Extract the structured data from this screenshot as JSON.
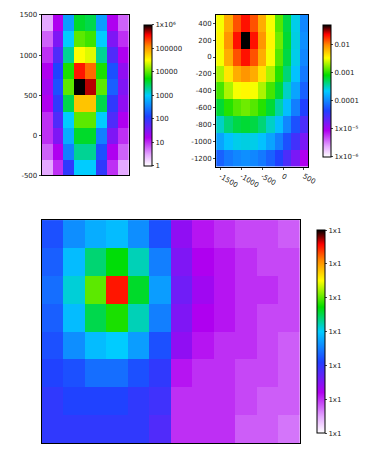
{
  "chart_data": [
    {
      "type": "heatmap",
      "log": true,
      "tick_labels": "y",
      "xlim": [
        -800,
        800
      ],
      "ylim": [
        -500,
        1500
      ],
      "yticks": [
        -500,
        0,
        500,
        1000,
        1500
      ],
      "x": [
        -700,
        -500,
        -300,
        -100,
        100,
        300,
        500,
        700
      ],
      "y": [
        -400,
        -200,
        0,
        200,
        400,
        600,
        800,
        1000,
        1200,
        1400
      ],
      "cells": [
        [
          3,
          10,
          100,
          1000,
          1000,
          100,
          10,
          3
        ],
        [
          6,
          16,
          320,
          2000,
          2000,
          160,
          16,
          6
        ],
        [
          10,
          32,
          630,
          4000,
          4000,
          320,
          32,
          10
        ],
        [
          10,
          63,
          1000,
          10000,
          10000,
          1000,
          63,
          16
        ],
        [
          16,
          100,
          3200,
          63000,
          63000,
          3200,
          100,
          25
        ],
        [
          20,
          160,
          10000,
          1000000,
          500000,
          10000,
          200,
          32
        ],
        [
          16,
          130,
          6300,
          320000,
          160000,
          6300,
          160,
          25
        ],
        [
          10,
          63,
          2000,
          32000,
          25000,
          2000,
          63,
          16
        ],
        [
          6,
          32,
          1000,
          10000,
          8000,
          1000,
          32,
          10
        ],
        [
          3,
          16,
          500,
          4000,
          3200,
          500,
          16,
          6
        ]
      ],
      "colorbar_range": [
        1,
        1000000
      ],
      "colorbar_ticks": [
        1,
        10,
        100,
        1000,
        10000,
        100000,
        {
          "value": 1000000,
          "label": "1x10⁶"
        }
      ]
    },
    {
      "type": "heatmap",
      "log": true,
      "xlim": [
        -1600,
        600
      ],
      "ylim": [
        -1300,
        500
      ],
      "xticks": [
        -1500,
        -1000,
        -500,
        0,
        500
      ],
      "yticks": [
        -1200,
        -1000,
        -800,
        -600,
        -400,
        -200,
        0,
        200,
        400
      ],
      "x": [
        -1500,
        -1300,
        -1100,
        -900,
        -700,
        -500,
        -300,
        -100,
        100,
        300,
        500
      ],
      "y": [
        -1200,
        -1000,
        -800,
        -600,
        -400,
        -200,
        0,
        200,
        400
      ],
      "cells": [
        [
          6.5e-05,
          8.5e-05,
          0.0001,
          0.00011,
          0.0001,
          8.5e-05,
          6.5e-05,
          4.4e-05,
          2.7e-05,
          1.6e-05,
          8.7e-06
        ],
        [
          0.00014,
          0.0002,
          0.00025,
          0.00026,
          0.00025,
          0.0002,
          0.00014,
          9.1e-05,
          5.4e-05,
          3e-05,
          1.6e-05
        ],
        [
          0.0003,
          0.00045,
          0.00058,
          0.00063,
          0.00058,
          0.00045,
          0.0003,
          0.00019,
          0.0001,
          5.4e-05,
          2.7e-05
        ],
        [
          0.00063,
          0.001,
          0.0013,
          0.0015,
          0.0013,
          0.001,
          0.00063,
          0.00035,
          0.00019,
          9.1e-05,
          4.4e-05
        ],
        [
          0.0012,
          0.0021,
          0.0032,
          0.0036,
          0.0032,
          0.0021,
          0.0012,
          0.00063,
          0.0003,
          0.00014,
          6.5e-05
        ],
        [
          0.0021,
          0.0042,
          0.0071,
          0.0087,
          0.0071,
          0.0042,
          0.0021,
          0.001,
          0.00045,
          0.0002,
          8.5e-05
        ],
        [
          0.0032,
          0.0071,
          0.014,
          0.021,
          0.014,
          0.0071,
          0.0032,
          0.0013,
          0.00058,
          0.00025,
          0.0001
        ],
        [
          0.0036,
          0.0087,
          0.021,
          0.05,
          0.021,
          0.0087,
          0.0036,
          0.0015,
          0.00063,
          0.00026,
          0.00011
        ],
        [
          0.0032,
          0.0071,
          0.014,
          0.021,
          0.014,
          0.0071,
          0.0032,
          0.0013,
          0.00058,
          0.00025,
          0.0001
        ]
      ],
      "colorbar_range": [
        1e-06,
        0.05
      ],
      "colorbar_ticks": [
        {
          "value": 1e-06,
          "label": "1x10⁻⁶"
        },
        {
          "value": 1e-05,
          "label": "1x10⁻⁵"
        },
        0.0001,
        0.001,
        0.01
      ]
    },
    {
      "type": "heatmap",
      "log": true,
      "tick_labels": false,
      "xlim": [
        0,
        120
      ],
      "ylim": [
        0,
        80
      ],
      "x": [
        5,
        15,
        25,
        35,
        45,
        55,
        65,
        75,
        85,
        95,
        105,
        115
      ],
      "y": [
        5,
        15,
        25,
        35,
        45,
        55,
        65,
        75
      ],
      "cells": [
        [
          0.0001,
          0.0001,
          0.0001,
          0.0001,
          0.0001,
          6.3e-05,
          1e-05,
          1e-05,
          1e-05,
          6.3e-06,
          6.3e-06,
          5e-06
        ],
        [
          0.0001,
          0.00013,
          0.00013,
          0.00013,
          0.0001,
          7.9e-05,
          1e-05,
          1e-05,
          1e-05,
          7.9e-06,
          6.3e-06,
          6.3e-06
        ],
        [
          0.00013,
          0.00016,
          0.00025,
          0.00025,
          0.00016,
          0.0001,
          1.3e-05,
          1e-05,
          1e-05,
          7.9e-06,
          7.9e-06,
          6.3e-06
        ],
        [
          0.00016,
          0.0004,
          0.00079,
          0.001,
          0.0005,
          0.00016,
          2.5e-05,
          1.3e-05,
          1e-05,
          1e-05,
          7.9e-06,
          6.3e-06
        ],
        [
          0.0002,
          0.00079,
          0.0032,
          0.0063,
          0.0016,
          0.00032,
          3.2e-05,
          1.6e-05,
          1.3e-05,
          1e-05,
          7.9e-06,
          7.9e-06
        ],
        [
          0.00025,
          0.0013,
          0.01,
          0.32,
          0.004,
          0.0005,
          4e-05,
          2e-05,
          1.3e-05,
          1e-05,
          1e-05,
          7.9e-06
        ],
        [
          0.0002,
          0.00079,
          0.0025,
          0.005,
          0.0016,
          0.00032,
          3.2e-05,
          1.6e-05,
          1.3e-05,
          1e-05,
          7.9e-06,
          7.9e-06
        ],
        [
          0.00016,
          0.0004,
          0.00063,
          0.00079,
          0.0004,
          0.00016,
          2.5e-05,
          1.3e-05,
          1e-05,
          7.9e-06,
          7.9e-06,
          6.3e-06
        ]
      ],
      "colorbar_range": [
        1e-06,
        1
      ],
      "colorbar_ticks": [
        {
          "value": 1e-06,
          "label": "1x1"
        },
        {
          "value": 1e-05,
          "label": "1x1"
        },
        {
          "value": 0.0001,
          "label": "1x1"
        },
        {
          "value": 0.001,
          "label": "1x1"
        },
        {
          "value": 0.01,
          "label": "1x1"
        },
        {
          "value": 0.1,
          "label": "1x1"
        },
        {
          "value": 1,
          "label": "1x1"
        }
      ]
    }
  ]
}
